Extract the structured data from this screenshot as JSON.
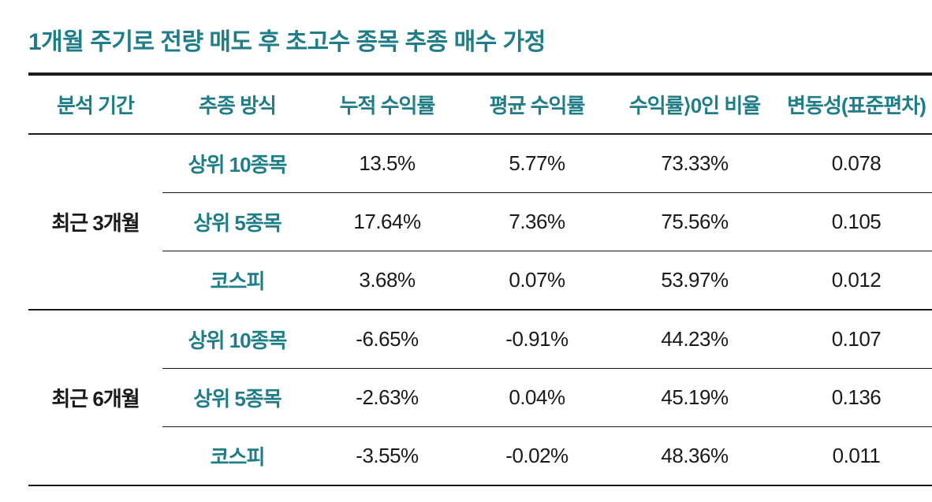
{
  "title": "1개월 주기로 전량 매도 후 초고수 종목 추종 매수 가정",
  "colors": {
    "teal": "#1f7d88",
    "black": "#1a1a1a",
    "border_thick": "#1a1a1a",
    "border_thin": "#1a1a1a",
    "background": "#ffffff"
  },
  "typography": {
    "title_fontsize": 30,
    "title_weight": 700,
    "header_fontsize": 26,
    "header_weight": 700,
    "cell_fontsize": 26,
    "cell_weight": 400
  },
  "borders": {
    "outer_top_width": 4,
    "header_bottom_width": 2,
    "group_divider_width": 2,
    "inner_row_width": 1
  },
  "columns": [
    {
      "key": "period",
      "label": "분석 기간"
    },
    {
      "key": "method",
      "label": "추종 방식"
    },
    {
      "key": "cum",
      "label": "누적 수익률"
    },
    {
      "key": "avg",
      "label": "평균 수익률"
    },
    {
      "key": "pos",
      "label": "수익률⟩0인 비율"
    },
    {
      "key": "vol",
      "label": "변동성(표준편차)"
    }
  ],
  "groups": [
    {
      "period": "최근 3개월",
      "rows": [
        {
          "method": "상위 10종목",
          "cum": "13.5%",
          "avg": "5.77%",
          "pos": "73.33%",
          "vol": "0.078"
        },
        {
          "method": "상위 5종목",
          "cum": "17.64%",
          "avg": "7.36%",
          "pos": "75.56%",
          "vol": "0.105"
        },
        {
          "method": "코스피",
          "cum": "3.68%",
          "avg": "0.07%",
          "pos": "53.97%",
          "vol": "0.012"
        }
      ]
    },
    {
      "period": "최근 6개월",
      "rows": [
        {
          "method": "상위 10종목",
          "cum": "-6.65%",
          "avg": "-0.91%",
          "pos": "44.23%",
          "vol": "0.107"
        },
        {
          "method": "상위 5종목",
          "cum": "-2.63%",
          "avg": "0.04%",
          "pos": "45.19%",
          "vol": "0.136"
        },
        {
          "method": "코스피",
          "cum": "-3.55%",
          "avg": "-0.02%",
          "pos": "48.36%",
          "vol": "0.011"
        }
      ]
    }
  ]
}
